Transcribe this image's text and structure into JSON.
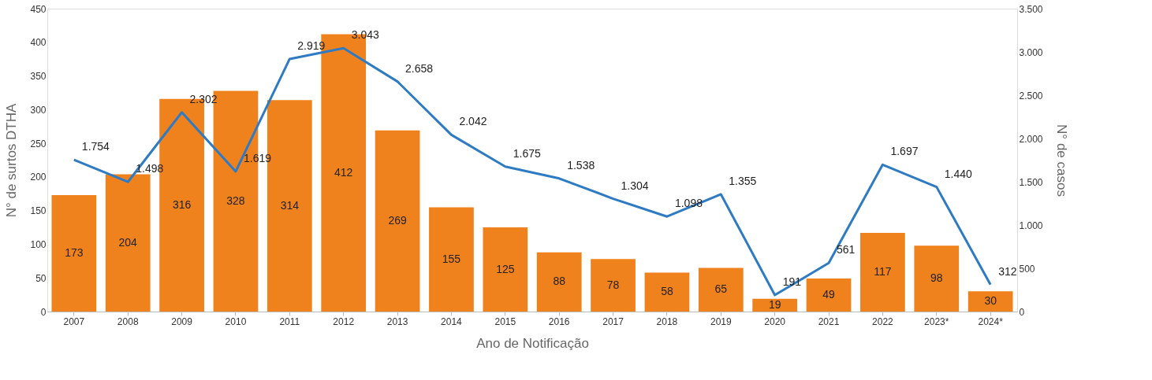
{
  "chart_data": {
    "type": "bar",
    "xlabel": "Ano de Notificação",
    "ylabel": "N° de surtos DTHA",
    "y2label": "N° de casos",
    "categories": [
      "2007",
      "2008",
      "2009",
      "2010",
      "2011",
      "2012",
      "2013",
      "2014",
      "2015",
      "2016",
      "2017",
      "2018",
      "2019",
      "2020",
      "2021",
      "2022",
      "2023*",
      "2024*"
    ],
    "series": [
      {
        "type": "bar",
        "color": "#f0821e",
        "data_labels": true,
        "values": [
          173,
          204,
          316,
          328,
          314,
          412,
          269,
          155,
          125,
          88,
          78,
          58,
          65,
          19,
          49,
          117,
          98,
          30
        ]
      },
      {
        "type": "line",
        "axis": "y2",
        "color": "#2e7bc4",
        "values": [
          1754,
          1498,
          2302,
          1619,
          2919,
          3043,
          2658,
          2042,
          1675,
          1538,
          1304,
          1098,
          1355,
          191,
          561,
          1697,
          1440,
          312
        ],
        "value_labels": [
          "1.754",
          "1.498",
          "2.302",
          "1.619",
          "2.919",
          "3.043",
          "2.658",
          "2.042",
          "1.675",
          "1.538",
          "1.304",
          "1.098",
          "1.355",
          "191",
          "561",
          "1.697",
          "1.440",
          "312"
        ]
      }
    ],
    "ylim": [
      0,
      450
    ],
    "yticks": [
      0,
      50,
      100,
      150,
      200,
      250,
      300,
      350,
      400,
      450
    ],
    "y2lim": [
      0,
      3500
    ],
    "y2ticks": [
      0,
      500,
      {
        "value": 1000,
        "label": "1.000"
      },
      {
        "value": 1500,
        "label": "1.500"
      },
      {
        "value": 2000,
        "label": "2.000"
      },
      {
        "value": 2500,
        "label": "2.500"
      },
      {
        "value": 3000,
        "label": "3.000"
      },
      {
        "value": 3500,
        "label": "3.500"
      }
    ],
    "grid": false
  }
}
